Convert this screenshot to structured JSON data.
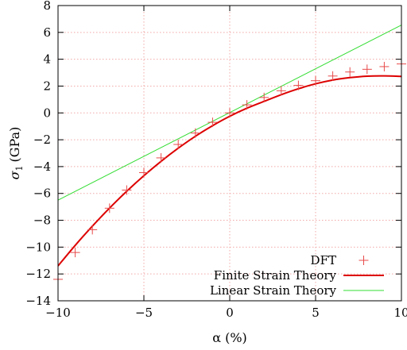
{
  "chart_data": {
    "type": "line",
    "xlabel": "α (%)",
    "ylabel_symbol": "σ",
    "ylabel_subscript": "1",
    "ylabel_unit": "(GPa)",
    "xlim": [
      -10,
      10
    ],
    "ylim": [
      -14,
      8
    ],
    "x_ticks": [
      -10,
      -5,
      0,
      5,
      10
    ],
    "y_ticks": [
      -14,
      -12,
      -10,
      -8,
      -6,
      -4,
      -2,
      0,
      2,
      4,
      6,
      8
    ],
    "x_tick_labels": [
      "−10",
      "−5",
      "0",
      "5",
      "10"
    ],
    "y_tick_labels": [
      "−14",
      "−12",
      "−10",
      "−8",
      "−6",
      "−4",
      "−2",
      "0",
      "2",
      "4",
      "6",
      "8"
    ],
    "grid": true,
    "legend_position": "bottom-right",
    "series": [
      {
        "name": "DFT",
        "kind": "points",
        "marker": "plus",
        "color": "#e84a4a",
        "x": [
          -10,
          -9,
          -8,
          -7,
          -6,
          -5,
          -4,
          -3,
          -2,
          -1,
          0,
          1,
          2,
          3,
          4,
          5,
          6,
          7,
          8,
          9,
          10
        ],
        "y": [
          -12.4,
          -10.4,
          -8.7,
          -7.1,
          -5.75,
          -4.45,
          -3.35,
          -2.35,
          -1.5,
          -0.7,
          0,
          0.6,
          1.15,
          1.65,
          2.05,
          2.4,
          2.75,
          3.05,
          3.25,
          3.45,
          3.65
        ]
      },
      {
        "name": "Finite Strain Theory",
        "kind": "line",
        "color": "#dd0000",
        "x": [
          -10,
          -9,
          -8,
          -7,
          -6,
          -5,
          -4,
          -3,
          -2,
          -1,
          0,
          1,
          2,
          3,
          4,
          5,
          6,
          7,
          8,
          9,
          10
        ],
        "y": [
          -11.4,
          -9.87,
          -8.44,
          -7.09,
          -5.84,
          -4.68,
          -3.61,
          -2.63,
          -1.74,
          -0.95,
          -0.25,
          0.35,
          0.86,
          1.36,
          1.8,
          2.17,
          2.45,
          2.63,
          2.74,
          2.76,
          2.72
        ]
      },
      {
        "name": "Linear Strain Theory",
        "kind": "line",
        "color": "#33dd33",
        "x": [
          -10,
          10
        ],
        "y": [
          -6.5,
          6.55
        ]
      }
    ]
  }
}
